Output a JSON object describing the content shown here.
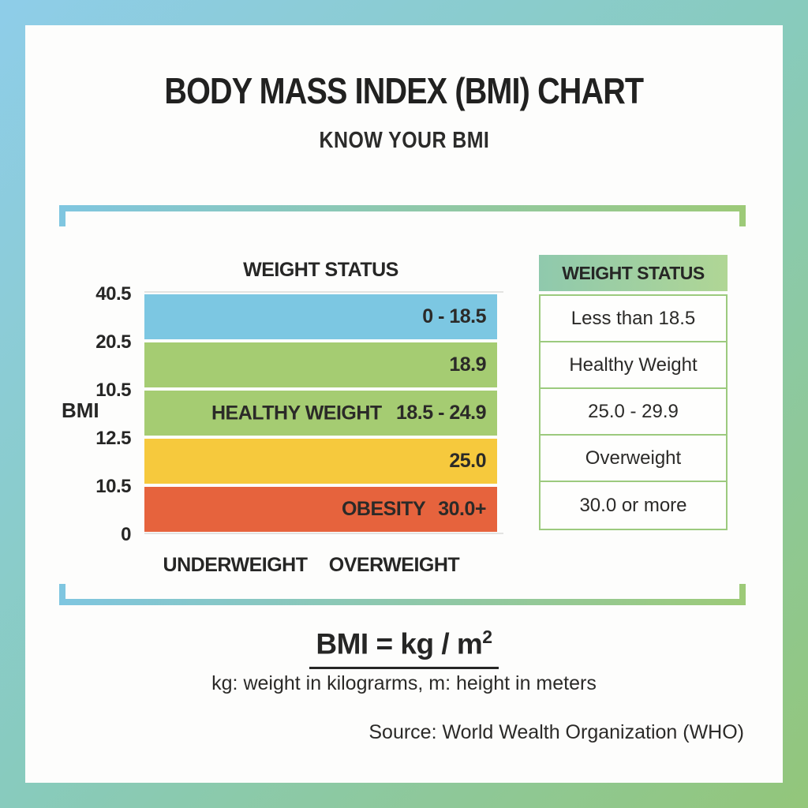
{
  "page": {
    "title": "BODY MASS INDEX (BMI) CHART",
    "subtitle": "KNOW YOUR BMI"
  },
  "chart": {
    "header": "WEIGHT STATUS",
    "y_axis_label": "BMI",
    "y_ticks": [
      "40.5",
      "20.5",
      "10.5",
      "12.5",
      "10.5",
      "0"
    ],
    "bars": [
      {
        "label": "",
        "value": "0 - 18.5",
        "color": "#7cc7e2"
      },
      {
        "label": "",
        "value": "18.9",
        "color": "#a5cc72"
      },
      {
        "label": "HEALTHY WEIGHT",
        "value": "18.5 - 24.9",
        "color": "#a5cc72"
      },
      {
        "label": "",
        "value": "25.0",
        "color": "#f6c93d"
      },
      {
        "label": "OBESITY",
        "value": "30.0+",
        "color": "#e6633d"
      }
    ],
    "x_categories": [
      "UNDERWEIGHT",
      "OVERWEIGHT"
    ]
  },
  "table": {
    "header": "WEIGHT STATUS",
    "rows": [
      "Less than 18.5",
      "Healthy Weight",
      "25.0 - 29.9",
      "Overweight",
      "30.0 or more"
    ]
  },
  "formula": {
    "equation": "BMI = kg / m",
    "exponent": "2",
    "note": "kg: weight in kilograrms, m: height in meters"
  },
  "source": "Source: World Wealth Organization (WHO)",
  "colors": {
    "frame_gradient_start": "#8ecde9",
    "frame_gradient_end": "#93c67a",
    "bracket_blue": "#7fc6e0",
    "bracket_green": "#9dca78",
    "bar_blue": "#7cc7e2",
    "bar_green": "#a5cc72",
    "bar_yellow": "#f6c93d",
    "bar_orange": "#e6633d",
    "table_border": "#9cca7e",
    "table_header_gradient_start": "#8fc9ad",
    "table_header_gradient_end": "#b0d695",
    "text": "#262625"
  },
  "chart_data": {
    "type": "bar",
    "orientation": "horizontal",
    "title": "WEIGHT STATUS",
    "ylabel": "BMI",
    "y_tick_labels": [
      "40.5",
      "20.5",
      "10.5",
      "12.5",
      "10.5",
      "0"
    ],
    "x_axis_categories": [
      "UNDERWEIGHT",
      "OVERWEIGHT"
    ],
    "bars": [
      {
        "row": 1,
        "segment_label": "",
        "range_label": "0 - 18.5",
        "color": "#7cc7e2"
      },
      {
        "row": 2,
        "segment_label": "",
        "range_label": "18.9",
        "color": "#a5cc72"
      },
      {
        "row": 3,
        "segment_label": "HEALTHY WEIGHT",
        "range_label": "18.5 - 24.9",
        "color": "#a5cc72"
      },
      {
        "row": 4,
        "segment_label": "",
        "range_label": "25.0",
        "color": "#f6c93d"
      },
      {
        "row": 5,
        "segment_label": "OBESITY",
        "range_label": "30.0+",
        "color": "#e6633d"
      }
    ],
    "side_table": {
      "header": "WEIGHT STATUS",
      "rows": [
        "Less than 18.5",
        "Healthy Weight",
        "25.0 - 29.9",
        "Overweight",
        "30.0 or more"
      ]
    },
    "grid": "light horizontal lines at top (40.5) and bottom (0) of bar stack only",
    "legend_position": "right"
  }
}
